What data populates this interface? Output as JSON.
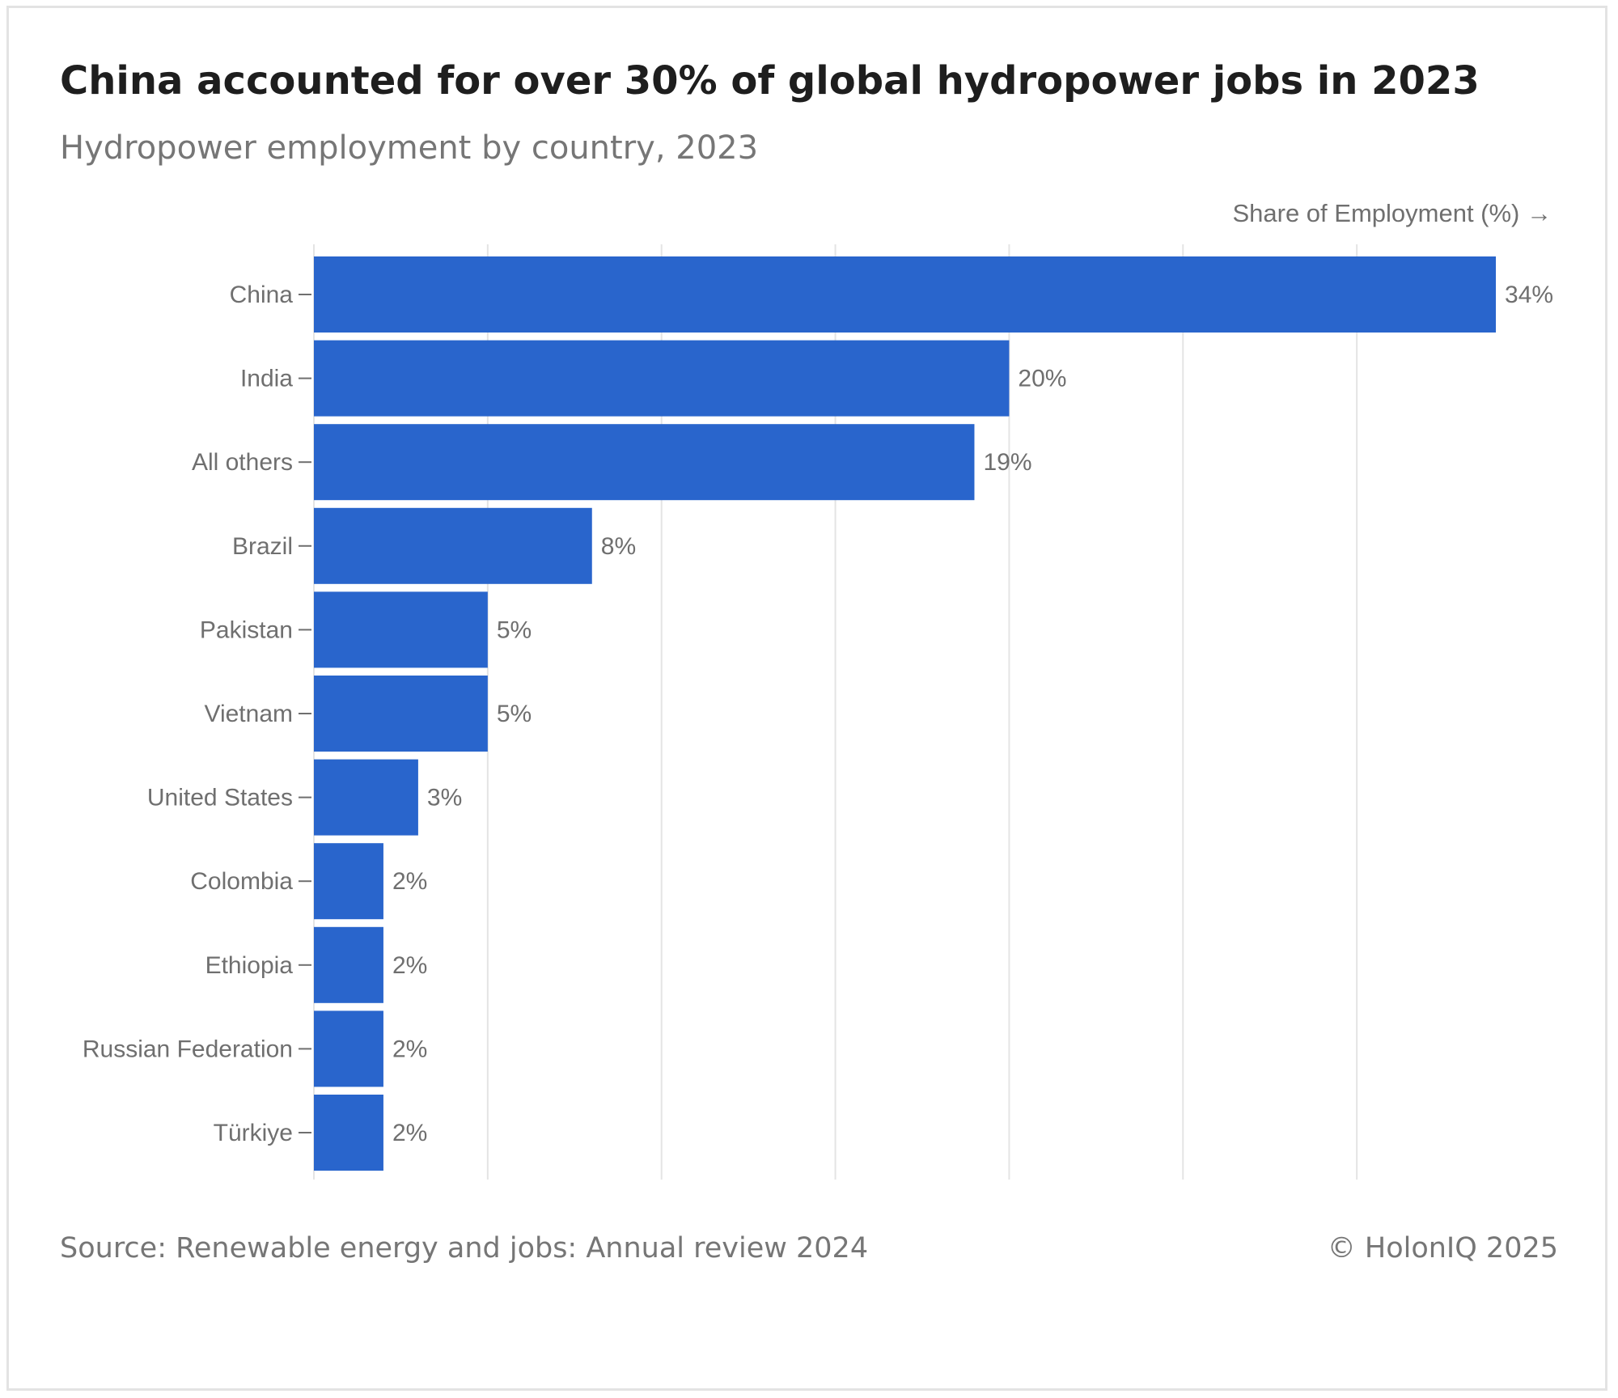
{
  "header": {
    "title": "China accounted for over 30% of global hydropower jobs in 2023",
    "subtitle": "Hydropower employment by country, 2023"
  },
  "footer": {
    "source": "Source: Renewable energy and jobs: Annual review 2024",
    "credit": "© HolonIQ 2025"
  },
  "colors": {
    "bar": "#2965cc",
    "grid": "#e4e4e4",
    "tick": "#6f6f6f"
  },
  "chart_data": {
    "type": "bar",
    "orientation": "horizontal",
    "categories": [
      "China",
      "India",
      "All others",
      "Brazil",
      "Pakistan",
      "Vietnam",
      "United States",
      "Colombia",
      "Ethiopia",
      "Russian Federation",
      "Türkiye"
    ],
    "values": [
      34,
      20,
      19,
      8,
      5,
      5,
      3,
      2,
      2,
      2,
      2
    ],
    "value_labels": [
      "34%",
      "20%",
      "19%",
      "8%",
      "5%",
      "5%",
      "3%",
      "2%",
      "2%",
      "2%",
      "2%"
    ],
    "xlabel": "Share of Employment (%) →",
    "ylabel": "",
    "xlim": [
      0,
      35
    ],
    "x_gridlines": [
      0,
      5,
      10,
      15,
      20,
      25,
      30
    ],
    "x_tick_labels_shown": false,
    "grid": true,
    "legend": "none"
  }
}
